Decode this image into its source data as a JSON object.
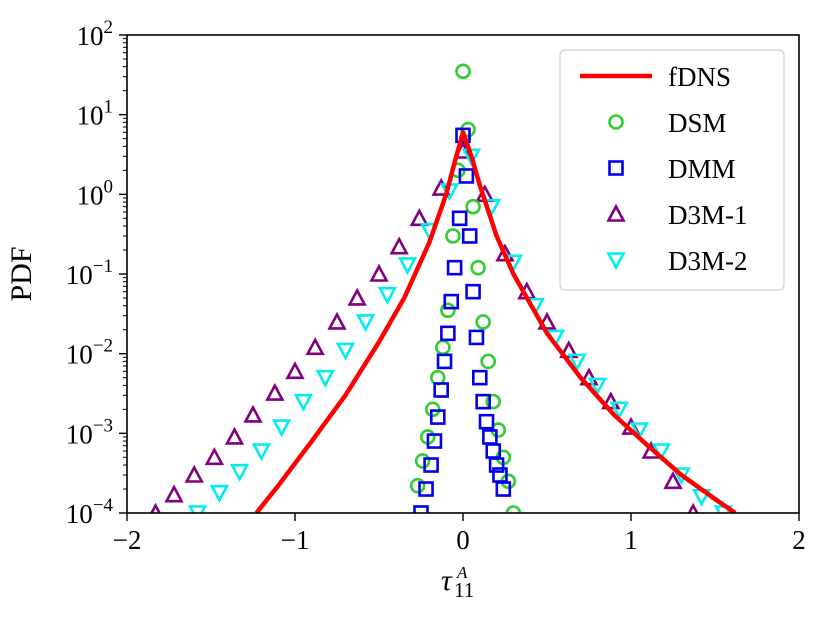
{
  "chart_data": {
    "type": "scatter",
    "yscale": "log",
    "xlabel_main": "τ",
    "xlabel_sup": "A",
    "xlabel_sub": "11",
    "ylabel": "PDF",
    "xlim": [
      -2,
      2
    ],
    "ylim_log10": [
      -4,
      2
    ],
    "x_ticks": [
      -2,
      -1,
      0,
      1,
      2
    ],
    "x_tick_labels": [
      "−2",
      "−1",
      "0",
      "1",
      "2"
    ],
    "y_ticks_log10": [
      -4,
      -3,
      -2,
      -1,
      0,
      1,
      2
    ],
    "y_tick_exponents": [
      "−4",
      "−3",
      "−2",
      "−1",
      "0",
      "1",
      "2"
    ],
    "y_tick_base": "10",
    "legend_position": "top-right",
    "series": [
      {
        "name": "fDNS",
        "style": "line",
        "color": "#ff0000",
        "x": [
          -1.23,
          -1.1,
          -0.9,
          -0.7,
          -0.5,
          -0.35,
          -0.2,
          -0.1,
          -0.05,
          0.0,
          0.05,
          0.1,
          0.2,
          0.3,
          0.5,
          0.7,
          0.9,
          1.1,
          1.3,
          1.5,
          1.62
        ],
        "y": [
          0.0001,
          0.00022,
          0.0008,
          0.003,
          0.014,
          0.05,
          0.25,
          1.0,
          2.5,
          6.0,
          3.0,
          1.3,
          0.3,
          0.1,
          0.018,
          0.005,
          0.0017,
          0.0007,
          0.0003,
          0.00015,
          0.0001
        ]
      },
      {
        "name": "DSM",
        "style": "marker",
        "marker": "circle",
        "color": "#33cc33",
        "x": [
          -0.27,
          -0.24,
          -0.21,
          -0.18,
          -0.15,
          -0.12,
          -0.09,
          -0.06,
          -0.03,
          0.0,
          0.03,
          0.06,
          0.09,
          0.12,
          0.15,
          0.18,
          0.21,
          0.24,
          0.27,
          0.3
        ],
        "y": [
          0.00022,
          0.00045,
          0.0009,
          0.002,
          0.005,
          0.012,
          0.035,
          0.3,
          2.0,
          35.0,
          6.5,
          0.7,
          0.12,
          0.025,
          0.008,
          0.0025,
          0.0011,
          0.0005,
          0.00025,
          0.0001
        ]
      },
      {
        "name": "DMM",
        "style": "marker",
        "marker": "square",
        "color": "#0000ee",
        "x": [
          -0.25,
          -0.22,
          -0.19,
          -0.17,
          -0.15,
          -0.13,
          -0.11,
          -0.09,
          -0.07,
          -0.05,
          -0.02,
          0.0,
          0.02,
          0.04,
          0.06,
          0.08,
          0.1,
          0.12,
          0.14,
          0.16,
          0.18,
          0.2,
          0.22,
          0.24
        ],
        "y": [
          0.0001,
          0.0002,
          0.0004,
          0.0008,
          0.0016,
          0.0035,
          0.008,
          0.018,
          0.045,
          0.12,
          0.5,
          5.5,
          1.7,
          0.3,
          0.06,
          0.016,
          0.005,
          0.0025,
          0.0014,
          0.0009,
          0.0006,
          0.0004,
          0.0003,
          0.0002
        ]
      },
      {
        "name": "D3M-1",
        "style": "marker",
        "marker": "triangle-up",
        "color": "#800080",
        "x": [
          -1.83,
          -1.72,
          -1.6,
          -1.48,
          -1.36,
          -1.25,
          -1.12,
          -1.0,
          -0.88,
          -0.75,
          -0.63,
          -0.5,
          -0.38,
          -0.26,
          -0.13,
          0.0,
          0.13,
          0.25,
          0.38,
          0.5,
          0.63,
          0.75,
          0.88,
          1.0,
          1.12,
          1.25,
          1.37
        ],
        "y": [
          0.0001,
          0.00017,
          0.0003,
          0.0005,
          0.0009,
          0.0017,
          0.0032,
          0.006,
          0.012,
          0.025,
          0.05,
          0.1,
          0.22,
          0.5,
          1.2,
          3.5,
          1.0,
          0.18,
          0.06,
          0.025,
          0.011,
          0.005,
          0.0025,
          0.0012,
          0.0006,
          0.00025,
          0.0001
        ]
      },
      {
        "name": "D3M-2",
        "style": "marker",
        "marker": "triangle-down",
        "color": "#00eeee",
        "x": [
          -1.58,
          -1.45,
          -1.33,
          -1.2,
          -1.08,
          -0.95,
          -0.82,
          -0.7,
          -0.58,
          -0.45,
          -0.33,
          -0.2,
          -0.08,
          0.05,
          0.17,
          0.3,
          0.43,
          0.55,
          0.68,
          0.8,
          0.93,
          1.05,
          1.18,
          1.3,
          1.42,
          1.55
        ],
        "y": [
          0.0001,
          0.00018,
          0.00033,
          0.0006,
          0.0012,
          0.0025,
          0.005,
          0.011,
          0.025,
          0.055,
          0.13,
          0.35,
          1.1,
          3.0,
          0.7,
          0.14,
          0.04,
          0.016,
          0.008,
          0.004,
          0.002,
          0.0011,
          0.0006,
          0.0003,
          0.00016,
          0.0001
        ]
      }
    ]
  }
}
